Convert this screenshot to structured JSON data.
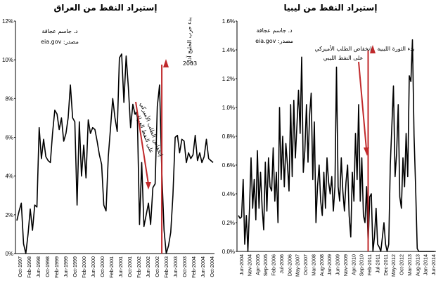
{
  "chart_data": [
    {
      "type": "line",
      "title": "إستيراد النفط من العراق",
      "credit": [
        "د. جاسم عجاقة",
        "مصدر: eia.gov"
      ],
      "ylim": [
        0,
        12
      ],
      "y_tick_labels": [
        "0%",
        "2%",
        "4%",
        "6%",
        "8%",
        "10%",
        "12%"
      ],
      "x_tick_labels": [
        "Oct-1997",
        "Feb-1998",
        "Jun-1998",
        "Oct-1998",
        "Feb-1999",
        "Jun-1999",
        "Oct-1999",
        "Feb-2000",
        "Jun-2000",
        "Oct-2000",
        "Feb-2001",
        "Jun-2001",
        "Oct-2001",
        "Feb-2002",
        "Jun-2002",
        "Oct-2002",
        "Feb-2003",
        "Jun-2003",
        "Oct-2003",
        "Feb-2004",
        "Jun-2004",
        "Oct-2004"
      ],
      "values": [
        1.7,
        2.2,
        2.6,
        0.5,
        0,
        1,
        2.3,
        1.2,
        2.5,
        2.4,
        6.5,
        4.9,
        5.9,
        5,
        4.8,
        4.7,
        6.2,
        7.4,
        7.2,
        6.4,
        7,
        5.8,
        6.2,
        7,
        8.7,
        7,
        6.8,
        2.5,
        6.8,
        4,
        5.6,
        3.9,
        6.9,
        6.2,
        6.5,
        6.4,
        5.8,
        5.1,
        4.6,
        2.5,
        2.2,
        5,
        6.5,
        8,
        7,
        6.3,
        10.1,
        10.3,
        7.8,
        10.2,
        8.6,
        6.5,
        7.7,
        7.2,
        7.3,
        1.5,
        4.7,
        1.4,
        2,
        2.6,
        1.5,
        3.4,
        3.6,
        7.6,
        8.7,
        4.2,
        1.2,
        0,
        0.4,
        1.1,
        3,
        6,
        6.1,
        5.2,
        5.9,
        5.8,
        4.7,
        5.2,
        4.9,
        5.1,
        6.1,
        4.8,
        5.2,
        4.7,
        5,
        5.9,
        4.9,
        4.8,
        4.7
      ],
      "event_index": 65,
      "event_label": [
        "بدء حرب الخليج آذار",
        "2003"
      ],
      "annotation": [
        "إنخفاض الطلب الأميركي",
        "على النفط العراقي"
      ]
    },
    {
      "type": "line",
      "title": "إستيراد النفط من ليبيا",
      "credit": [
        "د. جاسم عجاقة",
        "مصدر: eia.gov"
      ],
      "ylim": [
        0,
        1.6
      ],
      "y_tick_labels": [
        "0.0%",
        "0.2%",
        "0.4%",
        "0.6%",
        "0.8%",
        "1.0%",
        "1.2%",
        "1.4%",
        "1.6%"
      ],
      "x_tick_labels": [
        "Jun-2004",
        "Nov-2004",
        "Apr-2005",
        "Sep-2005",
        "Feb-2006",
        "Jul-2006",
        "Dec-2006",
        "May-2007",
        "Oct-2007",
        "Mar-2008",
        "Aug-2008",
        "Jan-2009",
        "Jun-2009",
        "Nov-2009",
        "Apr-2010",
        "Sep-2010",
        "Feb-2011",
        "Jul-2011",
        "Dec-2011",
        "May-2012",
        "Oct-2012",
        "Mar-2013",
        "Aug-2013",
        "Jan-2014",
        "Jun-2014"
      ],
      "values": [
        0.25,
        0.23,
        0.24,
        0.5,
        0.05,
        0.25,
        0,
        0.3,
        0.65,
        0.3,
        0.5,
        0.22,
        0.7,
        0.3,
        0.55,
        0.3,
        0.15,
        0.62,
        0.28,
        0.65,
        0.45,
        0.42,
        0.72,
        0.35,
        0.55,
        0.2,
        1,
        0.5,
        0.8,
        0.45,
        0.75,
        0.6,
        0.42,
        1.02,
        0.52,
        1.05,
        0.65,
        0.88,
        1.12,
        0.82,
        1.35,
        0.55,
        0.7,
        1.02,
        0.62,
        0.95,
        1.1,
        0.5,
        0.9,
        0.2,
        0.45,
        0.6,
        0.35,
        0.25,
        0.55,
        0.3,
        0.65,
        0.48,
        0.4,
        0.52,
        0.28,
        0.45,
        1.28,
        0.45,
        0.35,
        0.65,
        0.42,
        0.28,
        0.48,
        0.6,
        0.25,
        0.1,
        0.55,
        0.35,
        0.82,
        0.5,
        1.02,
        0.35,
        0.65,
        0.25,
        0.2,
        0.45,
        0.05,
        0.38,
        0.4,
        0,
        0.1,
        0.3,
        0.05,
        0.03,
        0,
        0.1,
        0.2,
        0.05,
        0,
        0.05,
        0.6,
        0.88,
        1.15,
        0.52,
        0.68,
        1.02,
        0.38,
        0.3,
        0.65,
        0.45,
        0.82,
        0.52,
        1.22,
        1.18,
        1.47,
        0.8,
        0.45,
        0.02,
        0,
        0,
        0,
        0,
        0,
        0,
        0,
        0,
        0,
        0,
        0
      ],
      "event_index": 82,
      "event_label": [
        "بدء الثورة الليبية"
      ],
      "annotation": [
        "إنخفاض الطلب الأميركي",
        "على النفط الليبي"
      ]
    }
  ]
}
